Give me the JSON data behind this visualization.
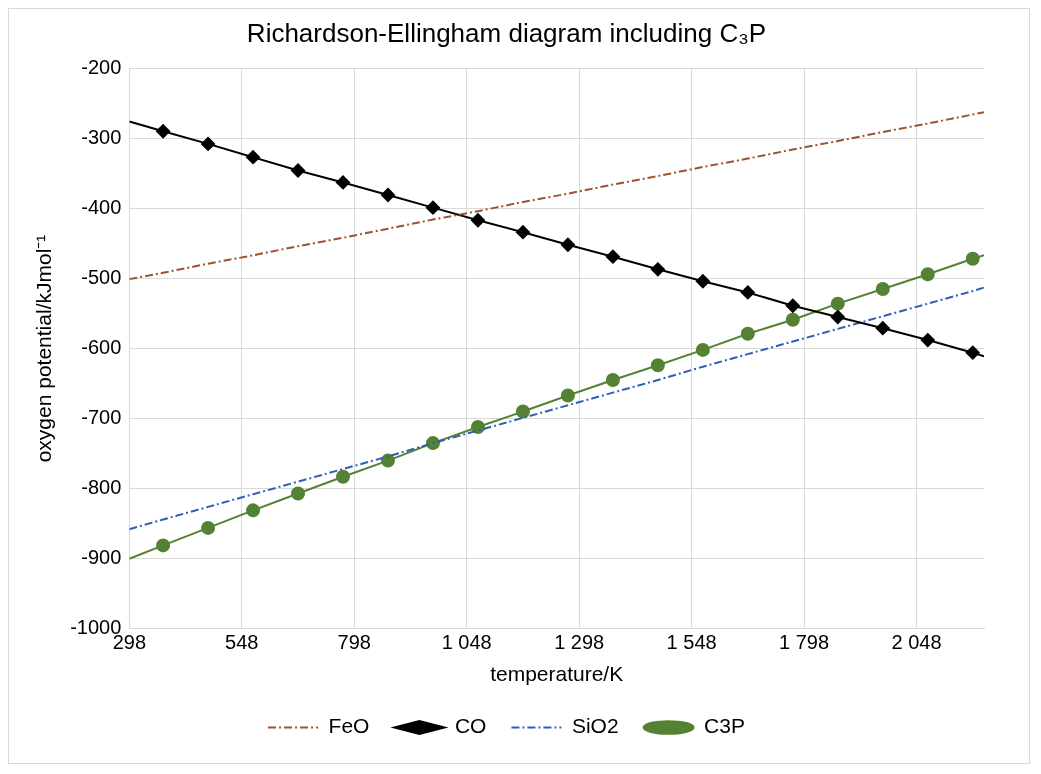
{
  "chart_data": {
    "type": "line",
    "title": "Richardson-Ellingham diagram including C₃P",
    "xlabel": "temperature/K",
    "ylabel": "oxygen potential/kJmol⁻¹",
    "x": [
      298,
      373,
      473,
      573,
      673,
      773,
      873,
      973,
      1073,
      1173,
      1273,
      1373,
      1473,
      1573,
      1673,
      1773,
      1873,
      1973,
      2073,
      2173,
      2198
    ],
    "series": [
      {
        "name": "FeO",
        "color": "#a0522d",
        "values": [
          -501,
          -492,
          -479,
          -467,
          -454,
          -442,
          -429,
          -416,
          -404,
          -391,
          -379,
          -366,
          -354,
          -341,
          -329,
          -316,
          -304,
          -291,
          -279,
          -266,
          -263
        ],
        "marker": "none",
        "line_style": "dashed"
      },
      {
        "name": "CO",
        "color": "#000000",
        "values": [
          -276,
          -290,
          -308,
          -327,
          -346,
          -363,
          -381,
          -399,
          -417,
          -434,
          -452,
          -469,
          -487,
          -504,
          -520,
          -539,
          -555,
          -571,
          -588,
          -606,
          -611
        ],
        "marker": "diamond",
        "line_style": "solid"
      },
      {
        "name": "SiO2",
        "color": "#2e5fb3",
        "values": [
          -858,
          -844,
          -826,
          -808,
          -790,
          -772,
          -754,
          -735,
          -717,
          -699,
          -681,
          -663,
          -645,
          -626,
          -608,
          -590,
          -572,
          -554,
          -536,
          -518,
          -513
        ],
        "marker": "none",
        "line_style": "dashed"
      },
      {
        "name": "C3P",
        "color": "#548235",
        "values": [
          -900,
          -881,
          -856,
          -831,
          -807,
          -783,
          -760,
          -735,
          -712,
          -690,
          -667,
          -645,
          -624,
          -602,
          -579,
          -559,
          -536,
          -515,
          -494,
          -472,
          -467
        ],
        "marker": "circle",
        "line_style": "solid"
      }
    ],
    "xlim": [
      298,
      2198
    ],
    "xticks": [
      298,
      548,
      798,
      {
        "value": 1048,
        "label": "1 048"
      },
      {
        "value": 1298,
        "label": "1 298"
      },
      {
        "value": 1548,
        "label": "1 548"
      },
      {
        "value": 1798,
        "label": "1 798"
      },
      {
        "value": 2048,
        "label": "2 048"
      }
    ],
    "ylim": [
      -1000,
      -200
    ],
    "yticks": [
      -1000,
      -900,
      -800,
      -700,
      -600,
      -500,
      -400,
      -300,
      -200
    ],
    "grid": true,
    "legend": "bottom"
  }
}
